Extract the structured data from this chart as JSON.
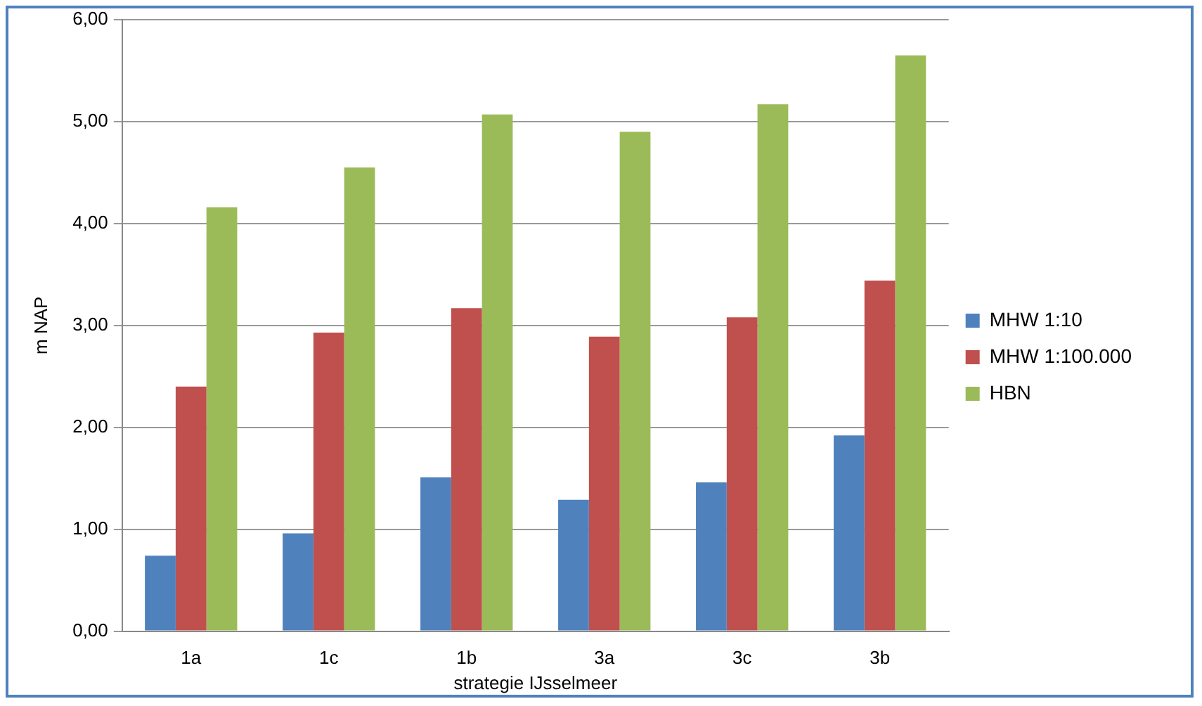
{
  "chart_data": {
    "type": "bar",
    "xlabel": "strategie IJsselmeer",
    "ylabel": "m NAP",
    "categories": [
      "1a",
      "1c",
      "1b",
      "3a",
      "3c",
      "3b"
    ],
    "series": [
      {
        "name": "MHW 1:10",
        "color": "#4f81bd",
        "values": [
          0.74,
          0.96,
          1.51,
          1.29,
          1.46,
          1.92
        ]
      },
      {
        "name": "MHW 1:100.000",
        "color": "#c0504d",
        "values": [
          2.4,
          2.93,
          3.17,
          2.89,
          3.08,
          3.44
        ]
      },
      {
        "name": "HBN",
        "color": "#9bbb59",
        "values": [
          4.16,
          4.55,
          5.07,
          4.9,
          5.17,
          5.65
        ]
      }
    ],
    "ylim": [
      0,
      6
    ],
    "yticks": [
      {
        "value": 0,
        "label": "0,00"
      },
      {
        "value": 1,
        "label": "1,00"
      },
      {
        "value": 2,
        "label": "2,00"
      },
      {
        "value": 3,
        "label": "3,00"
      },
      {
        "value": 4,
        "label": "4,00"
      },
      {
        "value": 5,
        "label": "5,00"
      },
      {
        "value": 6,
        "label": "6,00"
      }
    ],
    "grid": "y",
    "legend": "right"
  }
}
